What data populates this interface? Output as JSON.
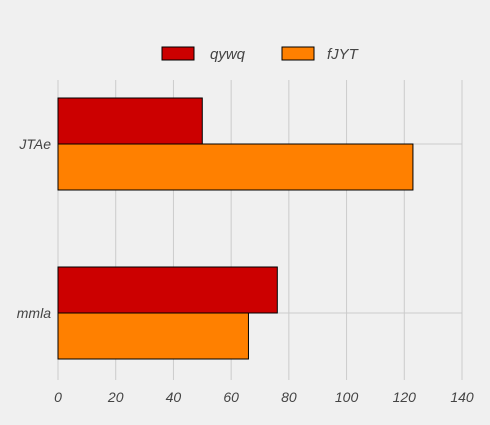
{
  "chart_data": {
    "type": "bar",
    "orientation": "horizontal",
    "categories": [
      "JTAe",
      "mmla"
    ],
    "series": [
      {
        "name": "qywq",
        "values": [
          50,
          76
        ],
        "color": "#cc0000"
      },
      {
        "name": "fJYT",
        "values": [
          123,
          66
        ],
        "color": "#ff8000"
      }
    ],
    "xlim": [
      0,
      140
    ],
    "xticks": [
      0,
      20,
      40,
      60,
      80,
      100,
      120,
      140
    ],
    "title": "",
    "xlabel": "",
    "ylabel": "",
    "grid": true,
    "legend_position": "top-center",
    "bar_edge_color": "#000000",
    "background": "#f0f0f0",
    "grid_color": "#cbcbcb"
  }
}
